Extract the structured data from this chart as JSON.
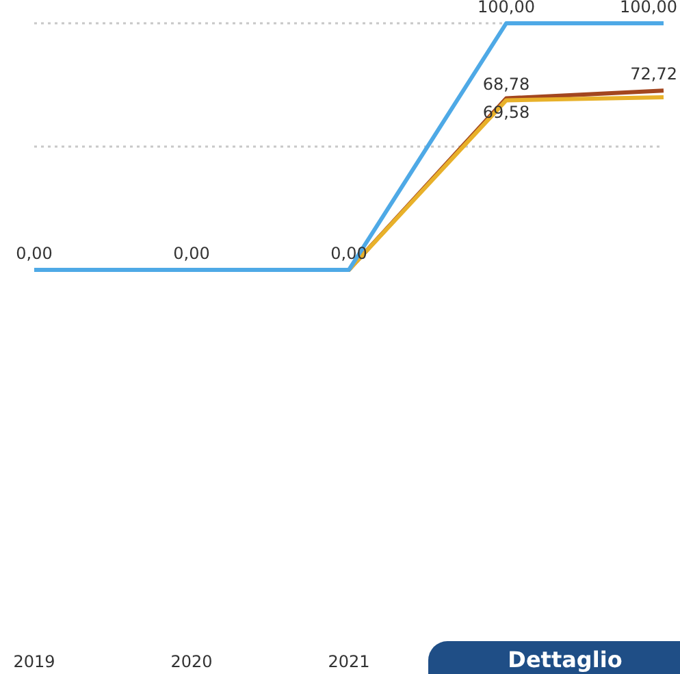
{
  "chart_data": {
    "type": "line",
    "categories": [
      "2019",
      "2020",
      "2021",
      null,
      null
    ],
    "series": [
      {
        "color": "#4ea9e6",
        "values": [
          0,
          0,
          0,
          100,
          100
        ],
        "value_labels": [
          null,
          null,
          null,
          "100,00",
          "100,00"
        ]
      },
      {
        "color": "#e8b12a",
        "values": [
          0,
          0,
          0,
          68.78,
          70
        ],
        "value_labels": [
          "0,00",
          "0,00",
          "0,00",
          "68,78",
          null
        ]
      },
      {
        "color": "#a3461f",
        "values": [
          0,
          0,
          0,
          69.58,
          72.72
        ],
        "value_labels": [
          null,
          null,
          null,
          "69,58",
          "72,72"
        ]
      }
    ],
    "ref_lines": [
      {
        "axis": "y",
        "value": 50,
        "color": "#c8c8c8",
        "line_style": "dotted"
      },
      {
        "axis": "y",
        "value": 100,
        "color": "#c8c8c8",
        "line_style": "dotted"
      }
    ],
    "tick_labels": "x",
    "legend": false,
    "marker": "none",
    "line_style": "solid",
    "annotations": [
      "Dettaglio"
    ]
  }
}
